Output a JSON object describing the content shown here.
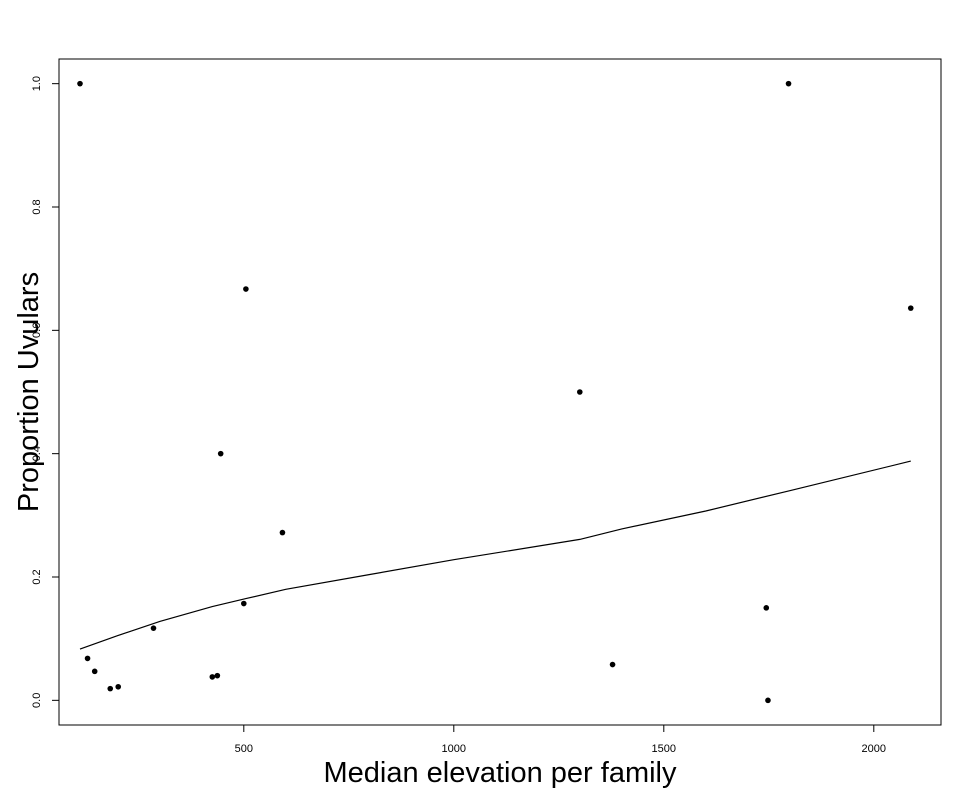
{
  "chart_data": {
    "type": "scatter",
    "title": "",
    "xlabel": "Median elevation per family",
    "ylabel": "Proportion Uvulars",
    "xlim": [
      60,
      2160
    ],
    "ylim": [
      -0.04,
      1.04
    ],
    "grid": false,
    "x_ticks": [
      500,
      1000,
      1500,
      2000
    ],
    "x_tick_labels": [
      "500",
      "1000",
      "1500",
      "2000"
    ],
    "y_ticks": [
      0.0,
      0.2,
      0.4,
      0.6,
      0.8,
      1.0
    ],
    "y_tick_labels": [
      "0.0",
      "0.2",
      "0.4",
      "0.6",
      "0.8",
      "1.0"
    ],
    "points": {
      "x": [
        110,
        128,
        145,
        182,
        201,
        285,
        425,
        437,
        445,
        500,
        505,
        592,
        1300,
        1378,
        1744,
        1748,
        1797,
        2088
      ],
      "y": [
        1.0,
        0.068,
        0.047,
        0.019,
        0.022,
        0.117,
        0.038,
        0.04,
        0.4,
        0.157,
        0.667,
        0.272,
        0.5,
        0.058,
        0.15,
        0.0,
        1.0,
        0.636
      ]
    },
    "trend_line": {
      "x": [
        110,
        200,
        300,
        425,
        505,
        600,
        800,
        1000,
        1300,
        1400,
        1600,
        1800,
        2088
      ],
      "y": [
        0.083,
        0.105,
        0.128,
        0.152,
        0.165,
        0.18,
        0.204,
        0.228,
        0.261,
        0.278,
        0.307,
        0.34,
        0.388
      ]
    },
    "marker_color": "#000000",
    "line_color": "#000000"
  }
}
